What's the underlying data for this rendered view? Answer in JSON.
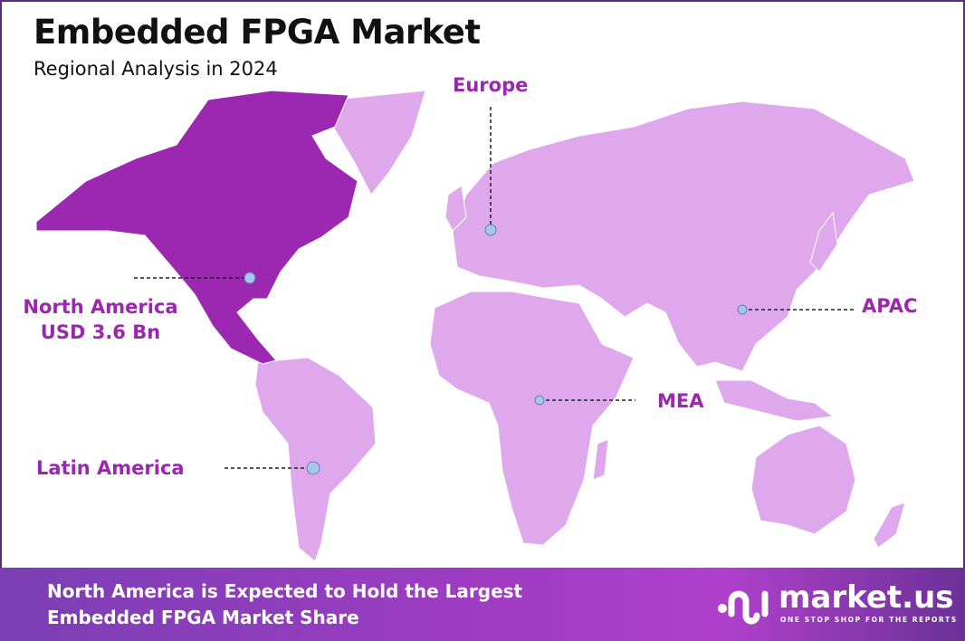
{
  "header": {
    "title": "Embedded FPGA Market",
    "subtitle": "Regional Analysis in 2024"
  },
  "map": {
    "highlight_color": "#9c27b0",
    "land_color": "#dfa8ec",
    "marker_color": "#a9c4ea",
    "highlighted_region": "North America",
    "regions": [
      {
        "name": "North America",
        "value": "USD 3.6 Bn"
      },
      {
        "name": "Europe"
      },
      {
        "name": "APAC"
      },
      {
        "name": "MEA"
      },
      {
        "name": "Latin America"
      }
    ]
  },
  "footer": {
    "line1": "North America is Expected to Hold the Largest",
    "line2": "Embedded FPGA Market Share"
  },
  "logo": {
    "name": "market.us",
    "tagline": "ONE STOP SHOP FOR THE REPORTS"
  }
}
